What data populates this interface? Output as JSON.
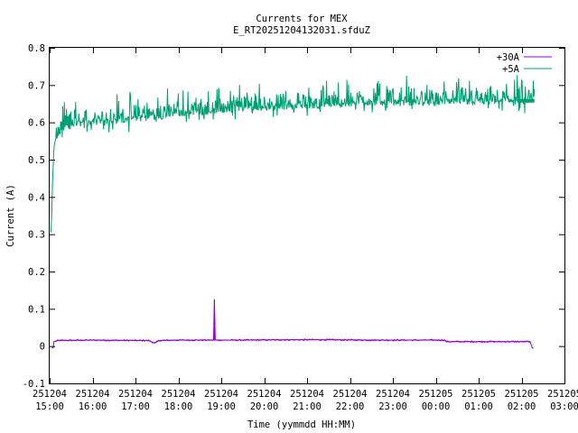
{
  "chart_data": {
    "type": "line",
    "title": "Currents for MEX",
    "subtitle": "E_RT20251204132031.sfduZ",
    "xlabel": "Time (yymmdd HH:MM)",
    "ylabel": "Current (A)",
    "x_ticks": [
      {
        "date": "251204",
        "time": "15:00",
        "hours": 15
      },
      {
        "date": "251204",
        "time": "16:00",
        "hours": 16
      },
      {
        "date": "251204",
        "time": "17:00",
        "hours": 17
      },
      {
        "date": "251204",
        "time": "18:00",
        "hours": 18
      },
      {
        "date": "251204",
        "time": "19:00",
        "hours": 19
      },
      {
        "date": "251204",
        "time": "20:00",
        "hours": 20
      },
      {
        "date": "251204",
        "time": "21:00",
        "hours": 21
      },
      {
        "date": "251204",
        "time": "22:00",
        "hours": 22
      },
      {
        "date": "251204",
        "time": "23:00",
        "hours": 23
      },
      {
        "date": "251205",
        "time": "00:00",
        "hours": 24
      },
      {
        "date": "251205",
        "time": "01:00",
        "hours": 25
      },
      {
        "date": "251205",
        "time": "02:00",
        "hours": 26
      },
      {
        "date": "251205",
        "time": "03:00",
        "hours": 27
      }
    ],
    "y_ticks": [
      "-0.1",
      "0",
      "0.1",
      "0.2",
      "0.3",
      "0.4",
      "0.5",
      "0.6",
      "0.7",
      "0.8"
    ],
    "xlim": [
      15,
      27
    ],
    "ylim": [
      -0.1,
      0.8
    ],
    "grid": false,
    "legend_position": "top-right",
    "series": [
      {
        "name": "+30A",
        "color": "#9400d3",
        "points": [
          [
            15.05,
            -0.005
          ],
          [
            15.08,
            -0.005
          ],
          [
            15.1,
            0.012
          ],
          [
            15.2,
            0.015
          ],
          [
            16.0,
            0.016
          ],
          [
            17.0,
            0.015
          ],
          [
            17.3,
            0.015
          ],
          [
            17.45,
            0.008
          ],
          [
            17.55,
            0.015
          ],
          [
            18.0,
            0.016
          ],
          [
            18.83,
            0.016
          ],
          [
            18.84,
            0.125
          ],
          [
            18.85,
            0.016
          ],
          [
            19.5,
            0.016
          ],
          [
            20.5,
            0.017
          ],
          [
            21.5,
            0.017
          ],
          [
            22.5,
            0.016
          ],
          [
            23.5,
            0.016
          ],
          [
            24.2,
            0.016
          ],
          [
            24.25,
            0.012
          ],
          [
            25.0,
            0.012
          ],
          [
            26.0,
            0.012
          ],
          [
            26.2,
            0.012
          ],
          [
            26.25,
            -0.005
          ],
          [
            26.28,
            -0.005
          ]
        ]
      },
      {
        "name": "+5A",
        "color": "#009e73",
        "points": [
          [
            15.03,
            0.305
          ],
          [
            15.05,
            0.36
          ],
          [
            15.07,
            0.45
          ],
          [
            15.1,
            0.535
          ],
          [
            15.15,
            0.56
          ],
          [
            15.25,
            0.575
          ],
          [
            15.4,
            0.585
          ],
          [
            15.6,
            0.595
          ],
          [
            16.0,
            0.6
          ],
          [
            16.5,
            0.605
          ],
          [
            17.0,
            0.61
          ],
          [
            17.5,
            0.615
          ],
          [
            18.0,
            0.625
          ],
          [
            18.5,
            0.628
          ],
          [
            19.0,
            0.633
          ],
          [
            19.5,
            0.637
          ],
          [
            20.0,
            0.64
          ],
          [
            20.5,
            0.643
          ],
          [
            21.0,
            0.645
          ],
          [
            21.5,
            0.647
          ],
          [
            22.0,
            0.65
          ],
          [
            22.5,
            0.652
          ],
          [
            23.0,
            0.652
          ],
          [
            23.5,
            0.653
          ],
          [
            24.0,
            0.653
          ],
          [
            24.5,
            0.655
          ],
          [
            25.0,
            0.655
          ],
          [
            25.5,
            0.656
          ],
          [
            26.0,
            0.657
          ],
          [
            26.3,
            0.658
          ]
        ],
        "spike_amplitude_max": 0.07
      }
    ]
  }
}
